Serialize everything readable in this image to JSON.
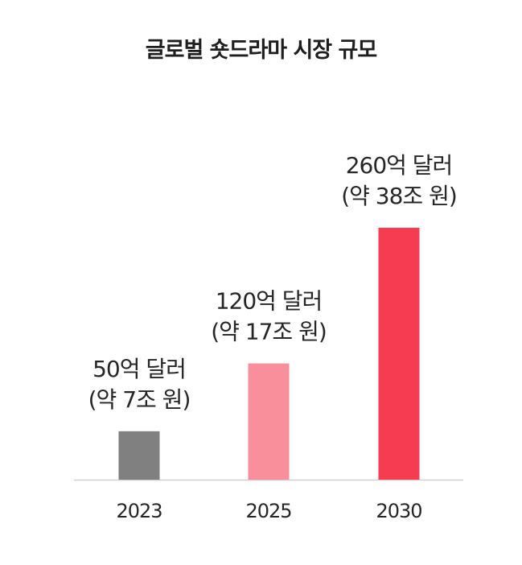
{
  "chart_data": {
    "type": "bar",
    "title": "글로벌 숏드라마 시장 규모",
    "categories": [
      "2023",
      "2025",
      "2030"
    ],
    "values": [
      50,
      120,
      260
    ],
    "unit": "억 달러",
    "data_labels": [
      [
        "50억 달러",
        "(약 7조 원)"
      ],
      [
        "120억 달러",
        "(약 17조 원)"
      ],
      [
        "260억 달러",
        "(약 38조 원)"
      ]
    ],
    "colors": [
      "#808080",
      "#f88f9a",
      "#f53c50"
    ],
    "xlabel": "",
    "ylabel": "",
    "ylim": [
      0,
      260
    ],
    "grid": false,
    "legend": "none"
  }
}
